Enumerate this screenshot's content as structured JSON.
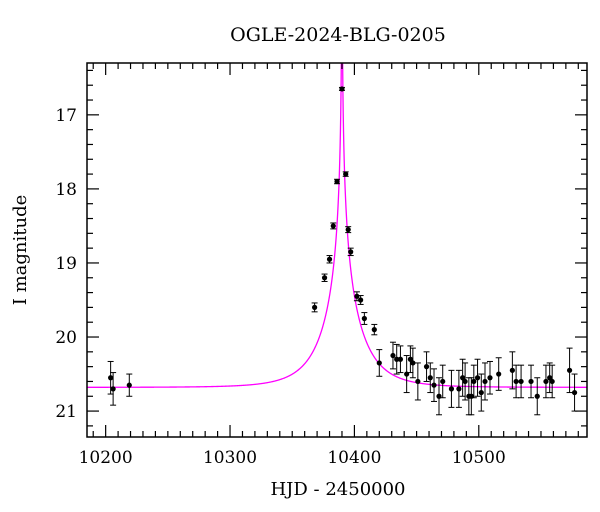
{
  "chart_data": {
    "type": "scatter",
    "title": "OGLE-2024-BLG-0205",
    "xlabel": "HJD - 2450000",
    "ylabel": "I magnitude",
    "xlim": [
      10185,
      10587
    ],
    "ylim": [
      21.35,
      16.3
    ],
    "y_inverted": true,
    "xticks": [
      "10200",
      "10300",
      "10400",
      "10500"
    ],
    "yticks": [
      "17",
      "18",
      "19",
      "20",
      "21"
    ],
    "grid": false,
    "colors": {
      "points": "#000000",
      "model": "#ff00ff",
      "frame": "#000000"
    },
    "model_curve": {
      "name": "model",
      "t0": 10390.0,
      "peak_mag": 16.2,
      "baseline_mag": 20.68,
      "tE": 30
    },
    "series": [
      {
        "x": [
          10204,
          10206,
          10219,
          10368,
          10376,
          10380,
          10383,
          10386,
          10390,
          10393,
          10395,
          10397,
          10402,
          10405,
          10408,
          10416,
          10420,
          10431,
          10434,
          10437,
          10442,
          10445,
          10447,
          10451,
          10458,
          10461,
          10464,
          10468,
          10471,
          10478,
          10484,
          10487,
          10489,
          10492,
          10494,
          10496,
          10499,
          10502,
          10505,
          10509,
          10516,
          10527,
          10530,
          10534,
          10542,
          10547,
          10554,
          10557,
          10559,
          10573,
          10577
        ],
        "y": [
          20.55,
          20.7,
          20.65,
          19.6,
          19.2,
          18.95,
          18.5,
          17.9,
          16.65,
          17.8,
          18.55,
          18.85,
          19.45,
          19.5,
          19.75,
          19.9,
          20.35,
          20.25,
          20.3,
          20.3,
          20.5,
          20.3,
          20.35,
          20.6,
          20.4,
          20.55,
          20.65,
          20.8,
          20.6,
          20.7,
          20.7,
          20.55,
          20.6,
          20.8,
          20.8,
          20.6,
          20.55,
          20.75,
          20.6,
          20.55,
          20.5,
          20.45,
          20.6,
          20.6,
          20.6,
          20.8,
          20.6,
          20.55,
          20.6,
          20.45,
          20.75
        ],
        "err": [
          0.22,
          0.22,
          0.15,
          0.06,
          0.05,
          0.05,
          0.04,
          0.03,
          0.02,
          0.03,
          0.04,
          0.05,
          0.06,
          0.06,
          0.08,
          0.07,
          0.18,
          0.18,
          0.2,
          0.18,
          0.25,
          0.18,
          0.2,
          0.25,
          0.2,
          0.2,
          0.22,
          0.25,
          0.22,
          0.25,
          0.25,
          0.25,
          0.25,
          0.25,
          0.25,
          0.22,
          0.25,
          0.25,
          0.25,
          0.22,
          0.22,
          0.25,
          0.22,
          0.22,
          0.22,
          0.25,
          0.22,
          0.2,
          0.22,
          0.3,
          0.25
        ]
      }
    ]
  }
}
